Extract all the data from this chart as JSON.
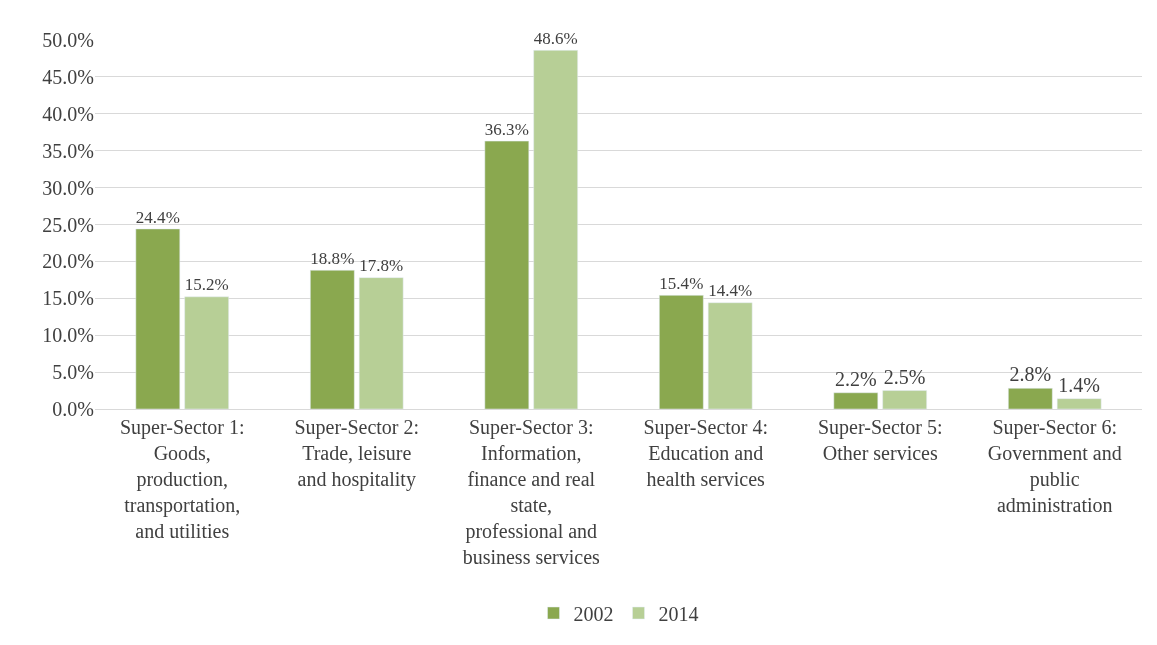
{
  "chart_data": {
    "type": "bar",
    "categories": [
      "Super-Sector 1: Goods, production, transportation, and utilities",
      "Super-Sector 2: Trade, leisure and hospitality",
      "Super-Sector 3: Information, finance and real state, professional and business services",
      "Super-Sector 4: Education and health services",
      "Super-Sector 5: Other services",
      "Super-Sector 6: Government and public administration"
    ],
    "series": [
      {
        "name": "2002",
        "color": "#8aa84f",
        "values": [
          24.4,
          18.8,
          36.3,
          15.4,
          2.2,
          2.8
        ],
        "value_labels": [
          "24.4%",
          "18.8%",
          "36.3%",
          "15.4%",
          "2.2%",
          "2.8%"
        ]
      },
      {
        "name": "2014",
        "color": "#b7cf96",
        "values": [
          15.2,
          17.8,
          48.6,
          14.4,
          2.5,
          1.4
        ],
        "value_labels": [
          "15.2%",
          "17.8%",
          "48.6%",
          "14.4%",
          "2.5%",
          "1.4%"
        ]
      }
    ],
    "ylim": [
      0,
      50
    ],
    "yticks": [
      {
        "value": 0,
        "label": "0.0%"
      },
      {
        "value": 5,
        "label": "5.0%"
      },
      {
        "value": 10,
        "label": "10.0%"
      },
      {
        "value": 15,
        "label": "15.0%"
      },
      {
        "value": 20,
        "label": "20.0%"
      },
      {
        "value": 25,
        "label": "25.0%"
      },
      {
        "value": 30,
        "label": "30.0%"
      },
      {
        "value": 35,
        "label": "35.0%"
      },
      {
        "value": 40,
        "label": "40.0%"
      },
      {
        "value": 45,
        "label": "45.0%"
      },
      {
        "value": 50,
        "label": "50.0%"
      }
    ],
    "grid": "y",
    "legend": "bottom"
  }
}
